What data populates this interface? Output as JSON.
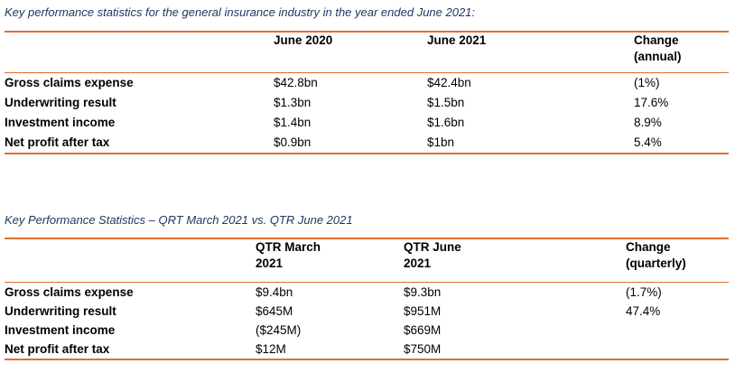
{
  "table1": {
    "caption": "Key performance statistics for the general insurance industry in the year ended June 2021:",
    "headers": [
      "June 2020",
      "June 2021",
      "Change",
      "(annual)"
    ],
    "rows": [
      {
        "label": "Gross claims expense",
        "v1": "$42.8bn",
        "v2": "$42.4bn",
        "v3": "(1%)"
      },
      {
        "label": "Underwriting result",
        "v1": "$1.3bn",
        "v2": "$1.5bn",
        "v3": "17.6%"
      },
      {
        "label": "Investment income",
        "v1": "$1.4bn",
        "v2": "$1.6bn",
        "v3": "8.9%"
      },
      {
        "label": "Net profit after tax",
        "v1": "$0.9bn",
        "v2": "$1bn",
        "v3": "5.4%"
      }
    ]
  },
  "table2": {
    "caption": "Key Performance Statistics – QRT March 2021 vs. QTR June 2021",
    "headers": [
      "QTR March",
      "2021",
      "QTR June",
      "2021",
      "Change",
      "(quarterly)"
    ],
    "rows": [
      {
        "label": "Gross claims expense",
        "v1": "$9.4bn",
        "v2": "$9.3bn",
        "v3": "(1.7%)"
      },
      {
        "label": "Underwriting result",
        "v1": "$645M",
        "v2": "$951M",
        "v3": "47.4%"
      },
      {
        "label": "Investment income",
        "v1": "($245M)",
        "v2": "$669M",
        "v3": ""
      },
      {
        "label": "Net profit after tax",
        "v1": "$12M",
        "v2": "$750M",
        "v3": ""
      }
    ]
  },
  "colors": {
    "caption": "#1f3864",
    "rule": "#e0702f"
  }
}
